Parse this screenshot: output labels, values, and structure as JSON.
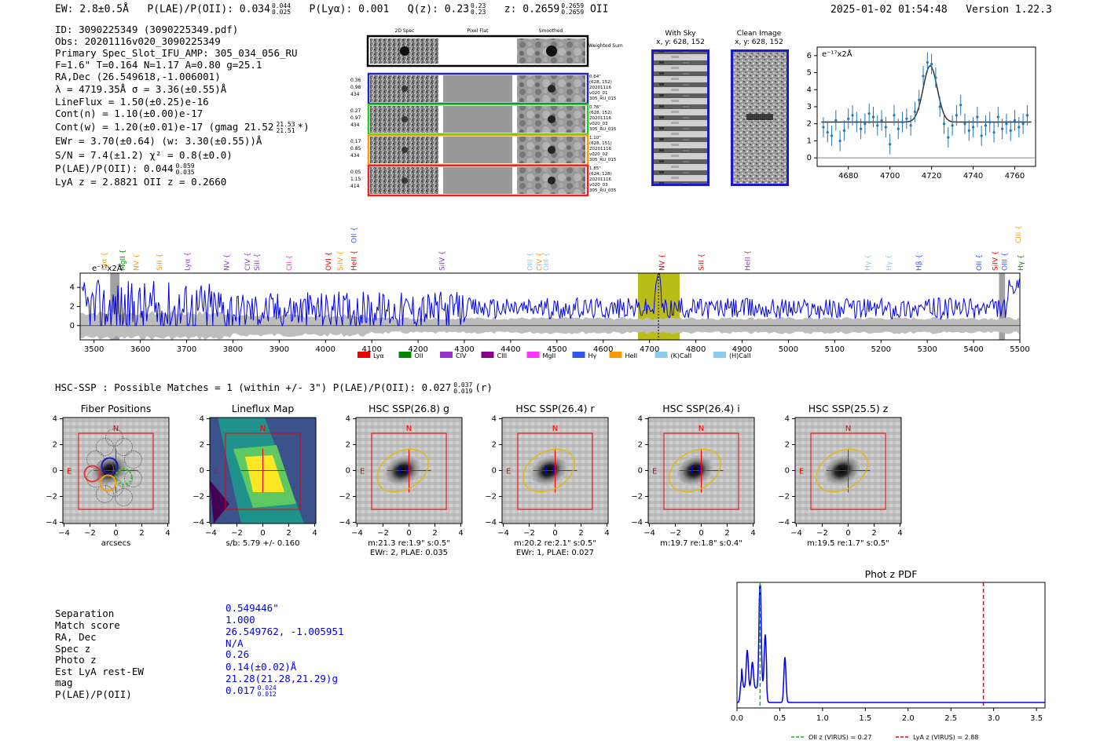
{
  "header": {
    "ew": "EW: 2.8±0.5Å",
    "plae_label": "P(LAE)/P(OII): 0.034",
    "plae_sup": "0.044",
    "plae_sub": "0.025",
    "plya": "P(Lyα): 0.001",
    "qz_label": "Q(z): 0.23",
    "qz_sup": "0.23",
    "qz_sub": "0.23",
    "z_label": "z: 0.2659",
    "z_sup": "0.2659",
    "z_sub": "0.2659",
    "z_line": "OII",
    "timestamp": "2025-01-02 01:54:48",
    "version": "Version 1.22.3"
  },
  "info": {
    "id": "ID: 3090225349 (3090225349.pdf)",
    "obs": "Obs: 20201116v020_3090225349",
    "primary": "Primary Spec_Slot_IFU_AMP: 305_034_056_RU",
    "fparams": "F=1.6\"  T=0.164  N=1.17  A=0.80  g=25.1",
    "radec": "RA,Dec (26.549618,-1.006001)",
    "lambda": "λ = 4719.35Å  σ = 3.36(±0.55)Å",
    "lineflux": "LineFlux = 1.50(±0.25)e-16",
    "contn": "Cont(n) = 1.10(±0.00)e-17",
    "contw": "Cont(w) = 1.20(±0.01)e-17 (gmag 21.52",
    "contw_sup": "21.53",
    "contw_sub": "21.51",
    "contw_end": "*)",
    "ewr": "EWr = 3.70(±0.64) (w: 3.30(±0.55))Å",
    "sn": "S/N = 7.4(±1.2)  χ² = 0.8(±0.0)",
    "plae": "P(LAE)/P(OII): 0.044",
    "plae_sup": "0.059",
    "plae_sub": "0.035",
    "lyaz": "LyA z = 2.8821  OII z = 0.2660"
  },
  "cutouts": {
    "col_2d": "2D Spec",
    "col_flat": "Pixel Flat",
    "col_smooth": "Smoothed",
    "weighted": "Weighted Sum",
    "rows": [
      {
        "left": [
          "0.36",
          "0.98",
          "434"
        ],
        "right": [
          "0.64\"",
          "(628, 152)",
          "20201116",
          "v020_01",
          "305_RU_015"
        ],
        "color": "#2222cc"
      },
      {
        "left": [
          "0.27",
          "0.97",
          "434"
        ],
        "right": [
          "0.76\"",
          "(628, 152)",
          "20201116",
          "v020_03",
          "305_RU_015"
        ],
        "color": "#22cc22"
      },
      {
        "left": [
          "0.17",
          "0.85",
          "434"
        ],
        "right": [
          "1.10\"",
          "(628, 151)",
          "20201116",
          "v020_02",
          "305_RU_015"
        ],
        "color": "#ff9900"
      },
      {
        "left": [
          "0.05",
          "1.15",
          "414"
        ],
        "right": [
          "1.85\"",
          "(624, 128)",
          "20201116",
          "v020_03",
          "305_RU_035"
        ],
        "color": "#ee2222"
      }
    ]
  },
  "sky": {
    "with_sky_title": "With Sky",
    "with_sky_xy": "x, y: 628, 152",
    "clean_title": "Clean Image",
    "clean_xy": "x, y: 628, 152"
  },
  "zoom": {
    "unit_label": "e⁻¹⁷x2Å"
  },
  "spectrum": {
    "unit_label": "e⁻¹⁷x2Å",
    "line_labels": [
      {
        "name": "Lyα",
        "w": 3520,
        "color": "#ff9900"
      },
      {
        "name": "MgII",
        "w": 3560,
        "color": "#008800"
      },
      {
        "name": "NV",
        "w": 3590,
        "color": "#ff9900"
      },
      {
        "name": "SiII",
        "w": 3640,
        "color": "#ff9900"
      },
      {
        "name": "Lyα",
        "w": 3700,
        "color": "#9933cc"
      },
      {
        "name": "NV",
        "w": 3785,
        "color": "#9933cc"
      },
      {
        "name": "CIV",
        "w": 3830,
        "color": "#9933cc"
      },
      {
        "name": "SiII",
        "w": 3850,
        "color": "#9933cc"
      },
      {
        "name": "CII",
        "w": 3920,
        "color": "#ff33cc"
      },
      {
        "name": "OVI",
        "w": 4005,
        "color": "#ee0000"
      },
      {
        "name": "HeII",
        "w": 4060,
        "color": "#ee0000"
      },
      {
        "name": "SiIV",
        "w": 4030,
        "color": "#ff9900"
      },
      {
        "name": "OII",
        "w": 4060,
        "color": "#3355ff"
      },
      {
        "name": "SiIV",
        "w": 4250,
        "color": "#9933cc"
      },
      {
        "name": "OIII",
        "w": 4440,
        "color": "#88ccee"
      },
      {
        "name": "CIV",
        "w": 4460,
        "color": "#ff9900"
      },
      {
        "name": "OIII",
        "w": 4475,
        "color": "#88ccee"
      },
      {
        "name": "NV",
        "w": 4725,
        "color": "#ee0000"
      },
      {
        "name": "SiII",
        "w": 4810,
        "color": "#ee0000"
      },
      {
        "name": "HeII",
        "w": 4910,
        "color": "#9933cc"
      },
      {
        "name": "Hγ",
        "w": 5170,
        "color": "#88ccee"
      },
      {
        "name": "Hγ",
        "w": 5215,
        "color": "#88ccee"
      },
      {
        "name": "Hβ",
        "w": 5280,
        "color": "#3355ff"
      },
      {
        "name": "OII",
        "w": 5410,
        "color": "#3355ff"
      },
      {
        "name": "SiIV",
        "w": 5445,
        "color": "#ee0000"
      },
      {
        "name": "OIII",
        "w": 5465,
        "color": "#3355ff"
      },
      {
        "name": "Hγ",
        "w": 5500,
        "color": "#008800"
      },
      {
        "name": "CIII",
        "w": 5495,
        "color": "#ff9900"
      }
    ],
    "legend": [
      {
        "name": "Lyα",
        "color": "#ee0000"
      },
      {
        "name": "OII",
        "color": "#008800"
      },
      {
        "name": "CIV",
        "color": "#9933cc"
      },
      {
        "name": "CIII",
        "color": "#880088"
      },
      {
        "name": "MgII",
        "color": "#ff33ff"
      },
      {
        "name": "Hγ",
        "color": "#3355ee"
      },
      {
        "name": "HeII",
        "color": "#ff9900"
      },
      {
        "name": "(K)CaII",
        "color": "#88ccee"
      },
      {
        "name": "(H)CaII",
        "color": "#88ccee"
      }
    ]
  },
  "hsc": {
    "summary": "HSC-SSP : Possible Matches = 1 (within +/- 3\")  P(LAE)/P(OII): 0.027",
    "summary_sup": "0.037",
    "summary_sub": "0.019",
    "summary_end": "(r)",
    "panels": [
      {
        "title": "Fiber Positions",
        "xlabel": "arcsecs",
        "sub2": ""
      },
      {
        "title": "Lineflux Map",
        "xlabel": "s/b: 5.79 +/- 0.160",
        "sub2": ""
      },
      {
        "title": "HSC SSP(26.8) g",
        "xlabel": "m:21.3  re:1.9\"  s:0.5\"",
        "sub2": "EWr: 2, PLAE: 0.035"
      },
      {
        "title": "HSC SSP(26.4) r",
        "xlabel": "m:20.2  re:2.1\"  s:0.5\"",
        "sub2": "EWr: 1, PLAE: 0.027"
      },
      {
        "title": "HSC SSP(26.4) i",
        "xlabel": "m:19.7  re:1.8\"  s:0.4\"",
        "sub2": ""
      },
      {
        "title": "HSC SSP(25.5) z",
        "xlabel": "m:19.5  re:1.7\"  s:0.5\"",
        "sub2": ""
      }
    ],
    "north": "N",
    "east": "E"
  },
  "match": {
    "rows": [
      {
        "label": "Separation",
        "value": "0.549446\""
      },
      {
        "label": "Match score",
        "value": "1.000"
      },
      {
        "label": "RA, Dec",
        "value": "26.549762, -1.005951"
      },
      {
        "label": "Spec z",
        "value": "N/A"
      },
      {
        "label": "Photo z",
        "value": "0.26"
      },
      {
        "label": "Est LyA rest-EW",
        "value": "0.14(±0.02)Å"
      },
      {
        "label": "mag",
        "value": "21.28(21.28,21.29)g"
      },
      {
        "label": "P(LAE)/P(OII)",
        "value": "0.017"
      }
    ],
    "plae_sup": "0.024",
    "plae_sub": "0.012"
  },
  "chart_data": [
    {
      "type": "scatter",
      "title": "",
      "xlabel": "",
      "ylabel": "e-17x2Å",
      "xlim": [
        4665,
        4770
      ],
      "ylim": [
        -0.5,
        6.5
      ],
      "xticks": [
        4680,
        4700,
        4720,
        4740,
        4760
      ],
      "yticks": [
        0,
        1,
        2,
        3,
        4,
        5,
        6
      ],
      "x": [
        4668,
        4670,
        4672,
        4674,
        4676,
        4678,
        4680,
        4682,
        4684,
        4686,
        4688,
        4690,
        4692,
        4694,
        4696,
        4698,
        4700,
        4702,
        4704,
        4706,
        4708,
        4710,
        4712,
        4714,
        4716,
        4718,
        4720,
        4722,
        4724,
        4726,
        4728,
        4730,
        4732,
        4734,
        4736,
        4738,
        4740,
        4742,
        4744,
        4746,
        4748,
        4750,
        4752,
        4754,
        4756,
        4758,
        4760,
        4762,
        4764,
        4766
      ],
      "y": [
        1.8,
        1.5,
        1.3,
        2.2,
        1.0,
        1.6,
        2.3,
        2.5,
        2.1,
        1.7,
        2.0,
        2.6,
        2.4,
        1.9,
        2.2,
        1.8,
        0.8,
        2.5,
        1.7,
        2.1,
        2.3,
        1.9,
        2.7,
        3.4,
        4.8,
        5.6,
        5.5,
        4.7,
        3.0,
        2.0,
        1.2,
        1.9,
        2.5,
        3.1,
        2.0,
        1.6,
        1.8,
        2.4,
        1.3,
        1.9,
        2.1,
        1.5,
        2.4,
        1.7,
        2.0,
        1.6,
        2.2,
        1.8,
        2.0,
        2.5
      ],
      "fit_continuum": 2.1,
      "fit_peak": 5.4,
      "fit_center": 4719.35,
      "fit_sigma": 3.36
    },
    {
      "type": "line",
      "title": "",
      "xlabel": "",
      "ylabel": "e-17x2Å",
      "xlim": [
        3470,
        5500
      ],
      "ylim": [
        -1.5,
        5.5
      ],
      "xticks": [
        3500,
        3600,
        3700,
        3800,
        3900,
        4000,
        4100,
        4200,
        4300,
        4400,
        4500,
        4600,
        4700,
        4800,
        4900,
        5000,
        5100,
        5200,
        5300,
        5400,
        5500
      ],
      "yticks": [
        0,
        2,
        4
      ],
      "highlight_region": [
        4675,
        4765
      ],
      "emission_wavelength": 4719.35
    },
    {
      "type": "line",
      "title": "Phot z PDF",
      "xlabel": "",
      "ylabel": "",
      "xlim": [
        0.0,
        3.6
      ],
      "xticks": [
        0.0,
        0.5,
        1.0,
        1.5,
        2.0,
        2.5,
        3.0,
        3.5
      ],
      "peaks": [
        {
          "z": 0.05,
          "h": 0.18
        },
        {
          "z": 0.12,
          "h": 0.32
        },
        {
          "z": 0.18,
          "h": 0.22
        },
        {
          "z": 0.27,
          "h": 1.0
        },
        {
          "z": 0.33,
          "h": 0.45
        },
        {
          "z": 0.56,
          "h": 0.38
        }
      ],
      "oii_z": 0.27,
      "lya_z": 2.88,
      "legend": [
        "OII z (VIRUS) = 0.27",
        "LyA z (VIRUS) = 2.88"
      ]
    }
  ]
}
